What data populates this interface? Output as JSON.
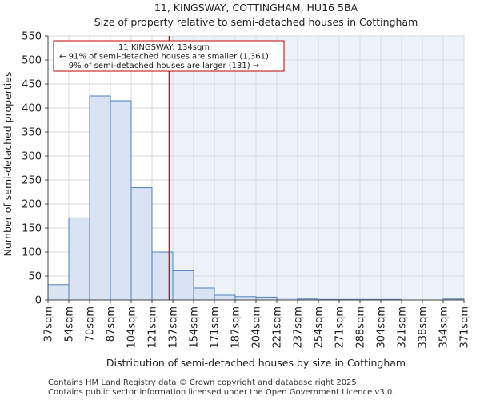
{
  "chart_data": {
    "type": "histogram",
    "title": "11, KINGSWAY, COTTINGHAM, HU16 5BA",
    "subtitle": "Size of property relative to semi-detached houses in Cottingham",
    "xlabel": "Distribution of semi-detached houses by size in Cottingham",
    "ylabel": "Number of semi-detached properties",
    "ylim": [
      0,
      550
    ],
    "yticks": [
      0,
      50,
      100,
      150,
      200,
      250,
      300,
      350,
      400,
      450,
      500,
      550
    ],
    "categories": [
      "37sqm",
      "54sqm",
      "70sqm",
      "87sqm",
      "104sqm",
      "121sqm",
      "137sqm",
      "154sqm",
      "171sqm",
      "187sqm",
      "204sqm",
      "221sqm",
      "237sqm",
      "254sqm",
      "271sqm",
      "288sqm",
      "304sqm",
      "321sqm",
      "338sqm",
      "354sqm",
      "371sqm"
    ],
    "values": [
      32,
      171,
      425,
      415,
      234,
      100,
      61,
      25,
      10,
      7,
      6,
      4,
      2,
      1,
      1,
      1,
      1,
      0,
      0,
      2
    ],
    "marker": {
      "value_sqm": 134,
      "bin_position": 5.82
    },
    "annotation": {
      "line1": "11 KINGSWAY: 134sqm",
      "line2": "← 91% of semi-detached houses are smaller (1,361)",
      "line3": "9% of semi-detached houses are larger (131) →"
    },
    "colors": {
      "bar_fill": "#dae3f3",
      "bar_edge": "#4f81bd",
      "marker_line": "#c00000",
      "highlight_region": "#eef2fa",
      "grid": "#d9d9d9"
    }
  },
  "footer": {
    "line1": "Contains HM Land Registry data © Crown copyright and database right 2025.",
    "line2": "Contains public sector information licensed under the Open Government Licence v3.0."
  }
}
